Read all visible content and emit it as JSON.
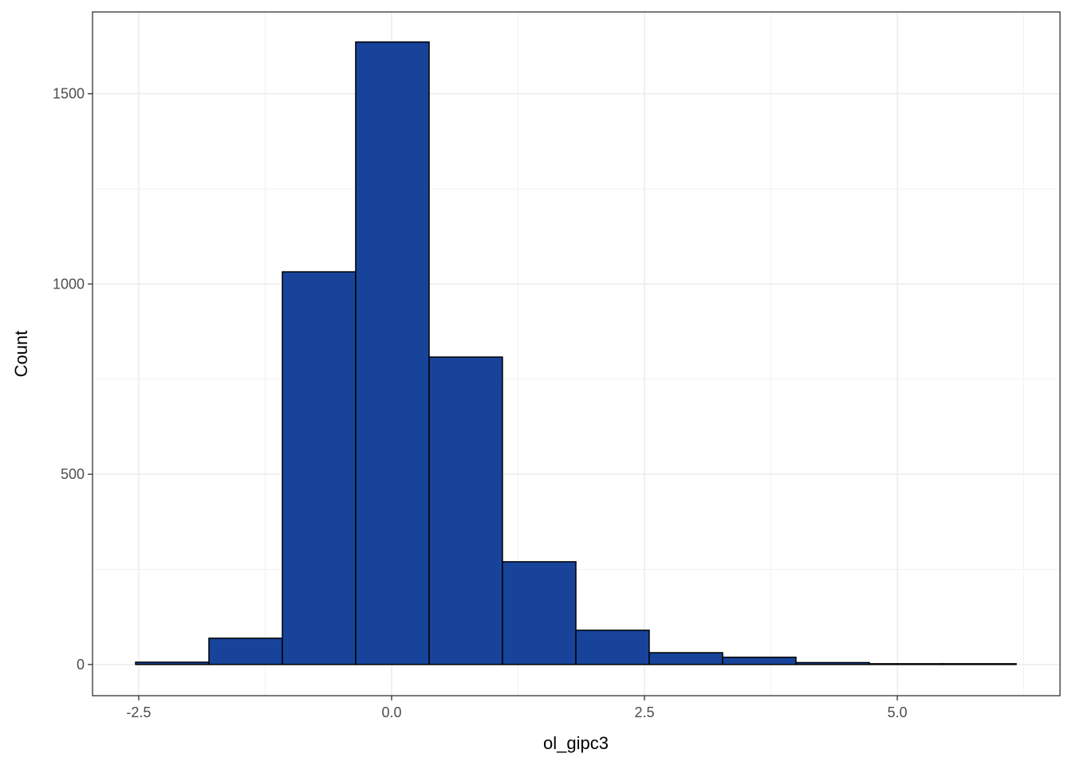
{
  "chart_data": {
    "type": "histogram",
    "x_label": "ol_gipc3",
    "y_label": "Count",
    "bins": [
      -2.531,
      -1.806,
      -1.08,
      -0.355,
      0.371,
      1.096,
      1.822,
      2.547,
      3.273,
      3.998,
      4.724,
      5.449,
      6.175
    ],
    "values": [
      6,
      69,
      1032,
      1636,
      808,
      270,
      90,
      31,
      19,
      5,
      2,
      2
    ],
    "color": "#17449a",
    "edge_color": "#000000",
    "xlim": [
      -2.957,
      6.609
    ],
    "ylim": [
      -82,
      1715
    ],
    "xticks": [
      -2.5,
      {
        "value": 0,
        "label": "0.0"
      },
      2.5,
      {
        "value": 5,
        "label": "5.0"
      }
    ],
    "yticks": [
      0,
      500,
      1000,
      1500
    ],
    "grid": true
  }
}
